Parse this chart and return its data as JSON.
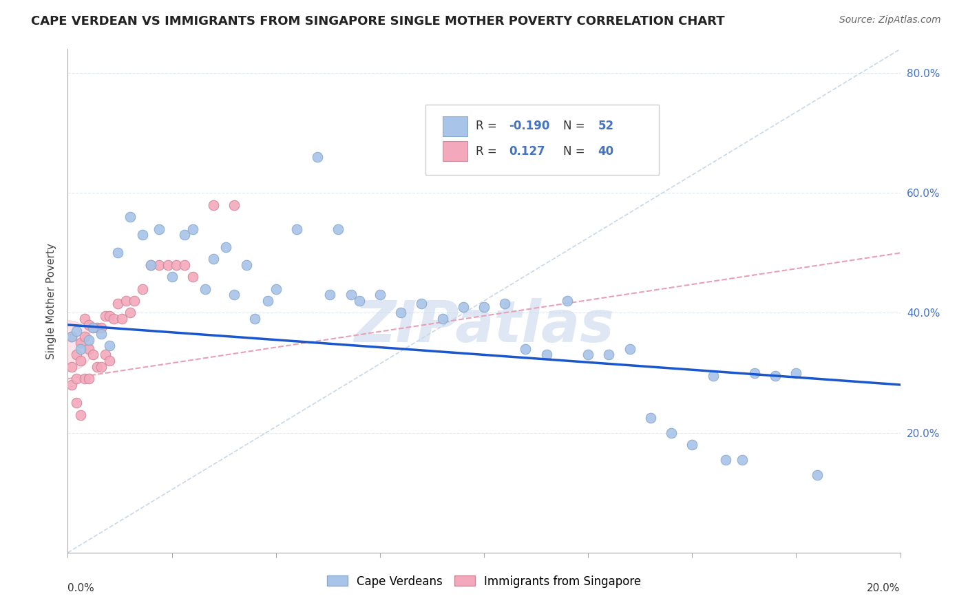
{
  "title": "CAPE VERDEAN VS IMMIGRANTS FROM SINGAPORE SINGLE MOTHER POVERTY CORRELATION CHART",
  "source": "Source: ZipAtlas.com",
  "ylabel": "Single Mother Poverty",
  "blue_color": "#A8C4E8",
  "pink_color": "#F4A8BC",
  "trend_blue_color": "#1A56CC",
  "trend_pink_color": "#E8A0B4",
  "diag_color": "#C8D8E8",
  "watermark": "ZIPatlas",
  "legend_r1_label": "R = ",
  "legend_r1_val": "-0.190",
  "legend_n1_label": "N = ",
  "legend_n1_val": "52",
  "legend_r2_label": "R = ",
  "legend_r2_val": "0.127",
  "legend_n2_label": "N = ",
  "legend_n2_val": "40",
  "xlim": [
    0.0,
    0.2
  ],
  "ylim": [
    0.0,
    0.84
  ],
  "blue_points_x": [
    0.001,
    0.002,
    0.003,
    0.005,
    0.006,
    0.008,
    0.01,
    0.012,
    0.015,
    0.018,
    0.02,
    0.022,
    0.025,
    0.028,
    0.03,
    0.033,
    0.035,
    0.038,
    0.04,
    0.043,
    0.045,
    0.048,
    0.05,
    0.055,
    0.06,
    0.063,
    0.065,
    0.068,
    0.07,
    0.075,
    0.08,
    0.085,
    0.09,
    0.095,
    0.1,
    0.105,
    0.11,
    0.115,
    0.12,
    0.125,
    0.13,
    0.135,
    0.14,
    0.145,
    0.15,
    0.155,
    0.158,
    0.162,
    0.165,
    0.17,
    0.175,
    0.18
  ],
  "blue_points_y": [
    0.36,
    0.37,
    0.34,
    0.355,
    0.375,
    0.365,
    0.345,
    0.5,
    0.56,
    0.53,
    0.48,
    0.54,
    0.46,
    0.53,
    0.54,
    0.44,
    0.49,
    0.51,
    0.43,
    0.48,
    0.39,
    0.42,
    0.44,
    0.54,
    0.66,
    0.43,
    0.54,
    0.43,
    0.42,
    0.43,
    0.4,
    0.415,
    0.39,
    0.41,
    0.41,
    0.415,
    0.34,
    0.33,
    0.42,
    0.33,
    0.33,
    0.34,
    0.225,
    0.2,
    0.18,
    0.295,
    0.155,
    0.155,
    0.3,
    0.295,
    0.3,
    0.13
  ],
  "pink_points_x": [
    0.001,
    0.001,
    0.001,
    0.002,
    0.002,
    0.002,
    0.003,
    0.003,
    0.003,
    0.004,
    0.004,
    0.004,
    0.005,
    0.005,
    0.005,
    0.006,
    0.006,
    0.007,
    0.007,
    0.008,
    0.008,
    0.009,
    0.009,
    0.01,
    0.01,
    0.011,
    0.012,
    0.013,
    0.014,
    0.015,
    0.016,
    0.018,
    0.02,
    0.022,
    0.024,
    0.026,
    0.028,
    0.03,
    0.035,
    0.04
  ],
  "pink_points_y": [
    0.36,
    0.31,
    0.28,
    0.33,
    0.29,
    0.25,
    0.35,
    0.32,
    0.23,
    0.39,
    0.36,
    0.29,
    0.38,
    0.34,
    0.29,
    0.375,
    0.33,
    0.375,
    0.31,
    0.375,
    0.31,
    0.395,
    0.33,
    0.395,
    0.32,
    0.39,
    0.415,
    0.39,
    0.42,
    0.4,
    0.42,
    0.44,
    0.48,
    0.48,
    0.48,
    0.48,
    0.48,
    0.46,
    0.58,
    0.58
  ],
  "blue_trend_x0": 0.0,
  "blue_trend_x1": 0.2,
  "blue_trend_y0": 0.38,
  "blue_trend_y1": 0.28,
  "pink_trend_x0": 0.0,
  "pink_trend_x1": 0.2,
  "pink_trend_y0": 0.29,
  "pink_trend_y1": 0.5,
  "right_yticks": [
    0.2,
    0.4,
    0.6,
    0.8
  ],
  "right_yticklabels": [
    "20.0%",
    "40.0%",
    "60.0%",
    "80.0%"
  ],
  "grid_color": "#E0E8F0",
  "tick_color": "#888888",
  "title_fontsize": 13,
  "axis_label_fontsize": 11,
  "tick_fontsize": 11,
  "right_tick_color": "#4472C4"
}
